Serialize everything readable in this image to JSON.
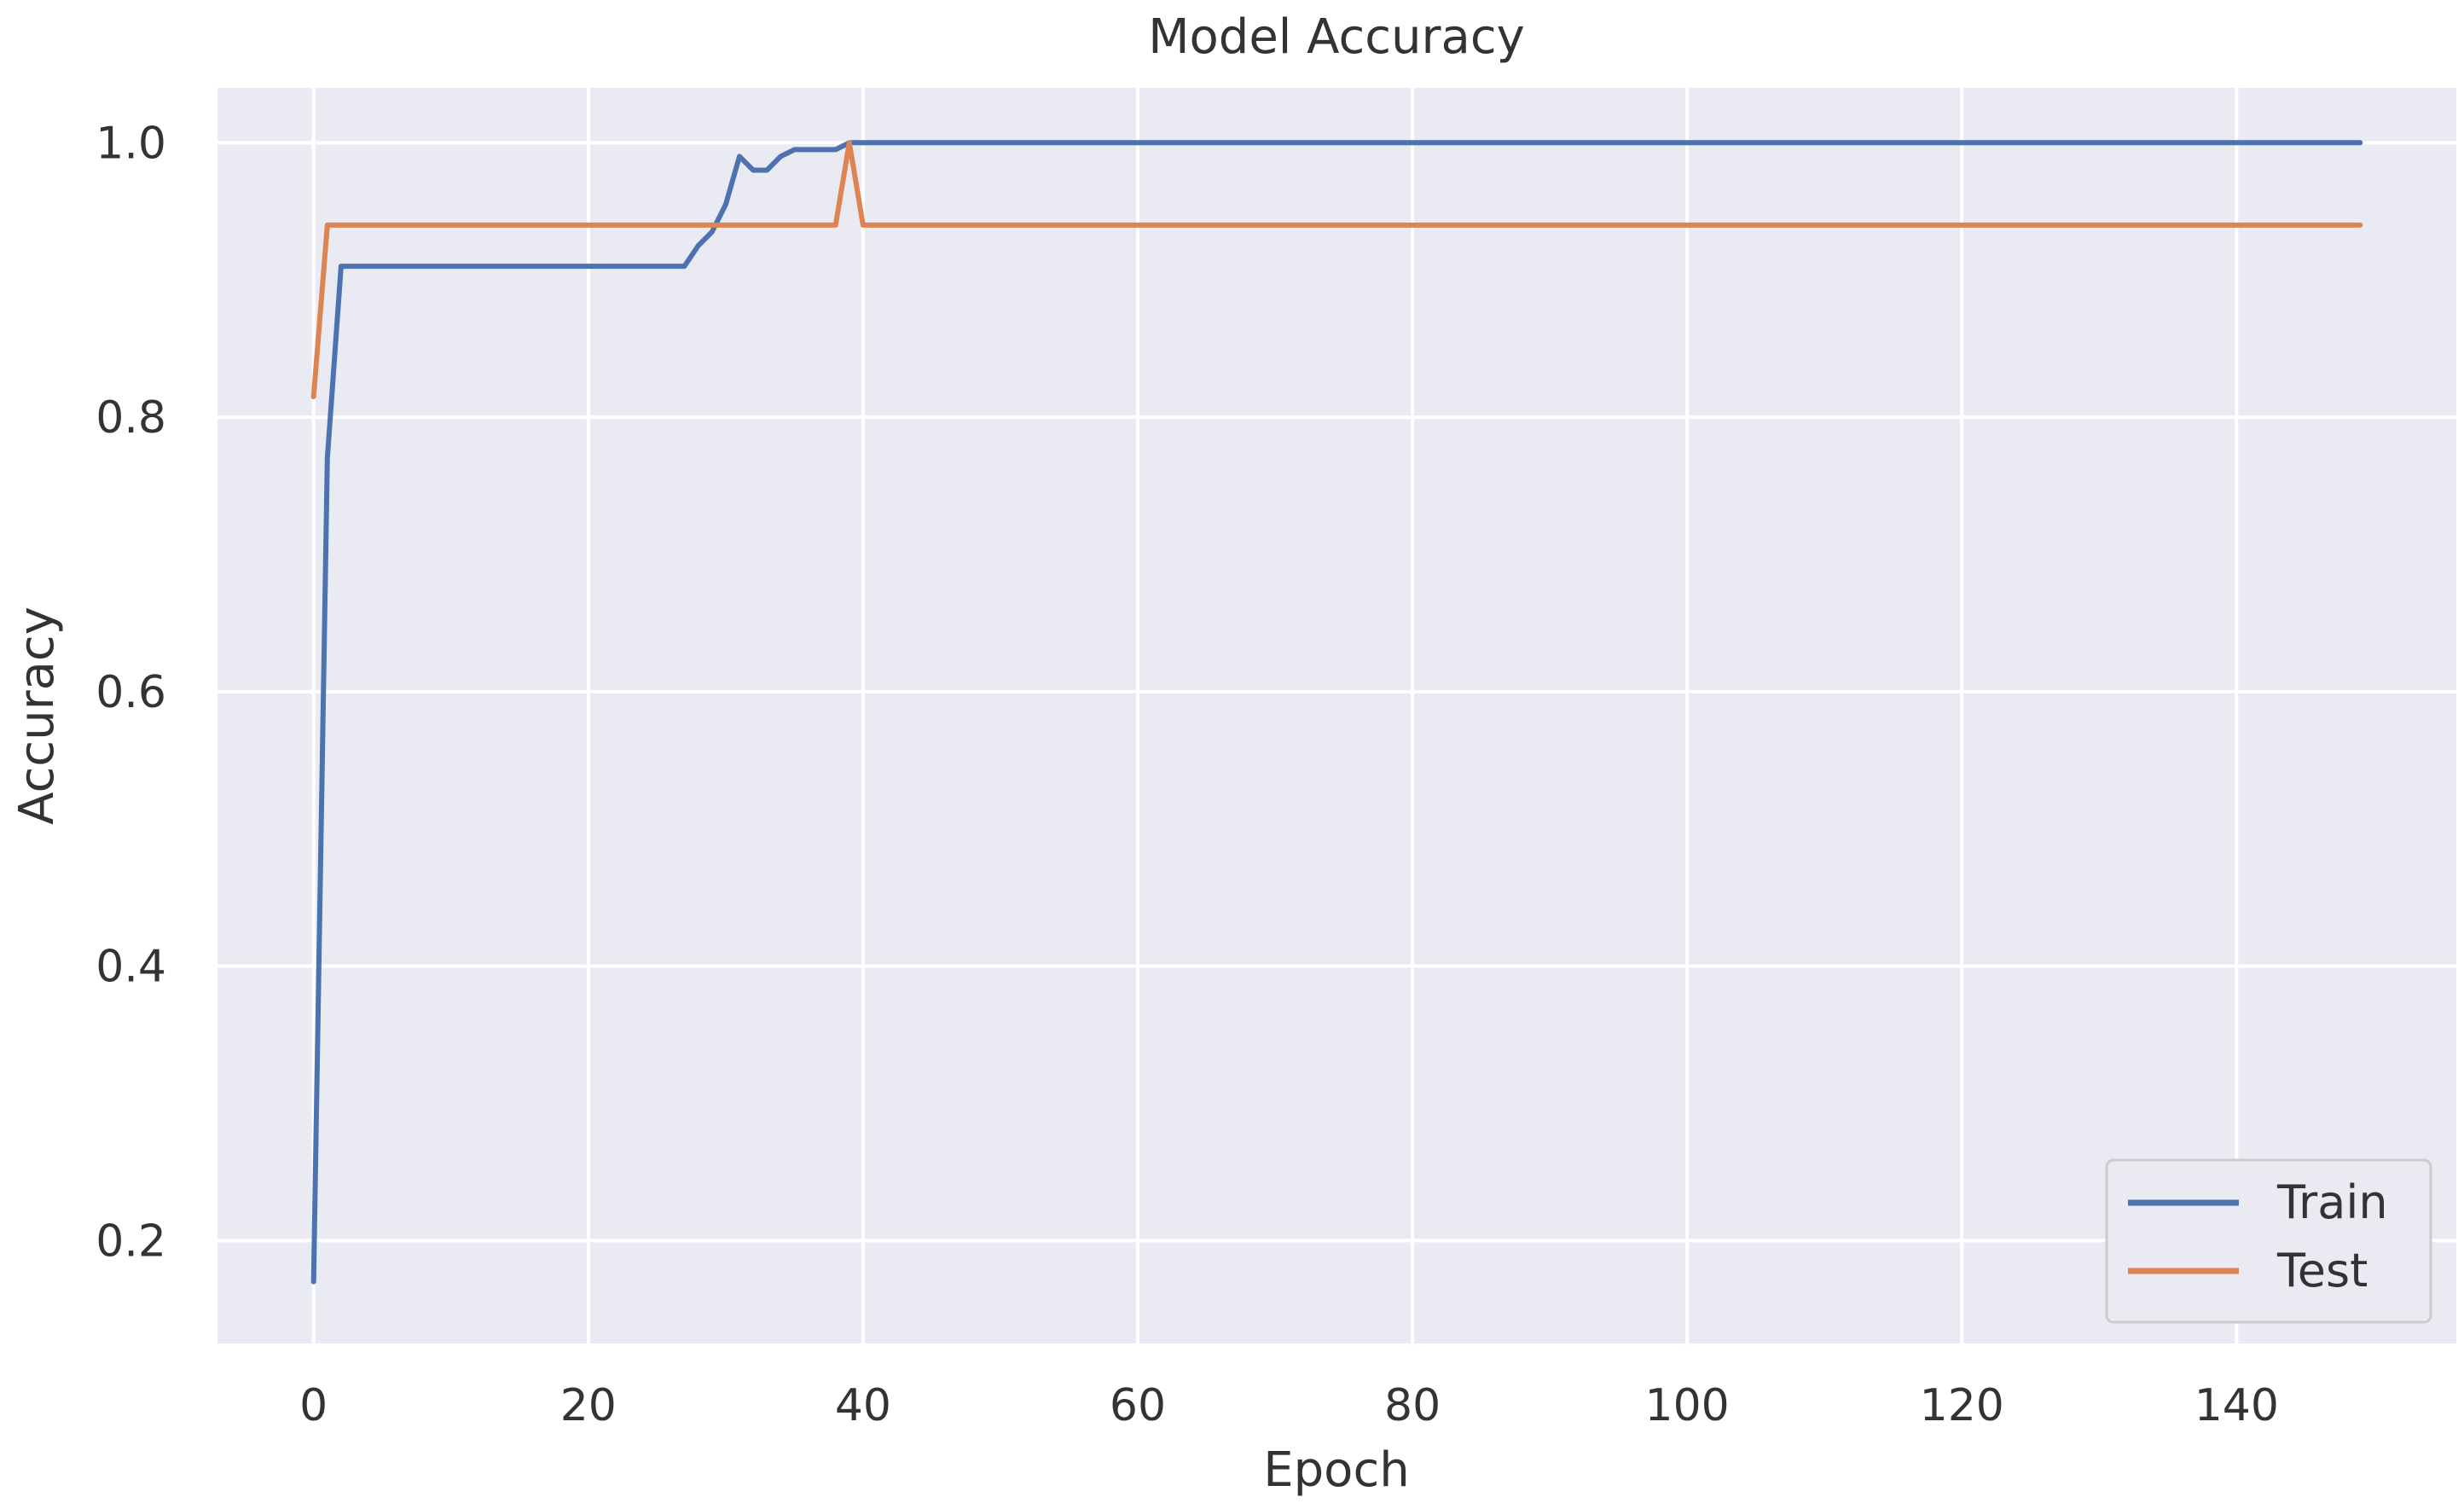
{
  "chart_data": {
    "type": "line",
    "title": "Model Accuracy",
    "xlabel": "Epoch",
    "ylabel": "Accuracy",
    "xlim": [
      -7,
      156
    ],
    "ylim": [
      0.125,
      1.04
    ],
    "xticks": [
      0,
      20,
      40,
      60,
      80,
      100,
      120,
      140
    ],
    "yticks": [
      0.2,
      0.4,
      0.6,
      0.8,
      1.0
    ],
    "grid": true,
    "legend_position": "bottom-right",
    "series": [
      {
        "name": "Train",
        "color": "#4c72b0",
        "x": [
          0,
          1,
          2,
          3,
          27,
          28,
          29,
          30,
          31,
          32,
          33,
          34,
          35,
          38,
          39,
          40,
          149
        ],
        "y": [
          0.17,
          0.77,
          0.91,
          0.91,
          0.91,
          0.925,
          0.935,
          0.955,
          0.99,
          0.98,
          0.98,
          0.99,
          0.995,
          0.995,
          1.0,
          1.0,
          1.0
        ]
      },
      {
        "name": "Test",
        "color": "#dd8452",
        "x": [
          0,
          1,
          38,
          39,
          40,
          149
        ],
        "y": [
          0.815,
          0.94,
          0.94,
          1.0,
          0.94,
          0.94
        ]
      }
    ]
  }
}
